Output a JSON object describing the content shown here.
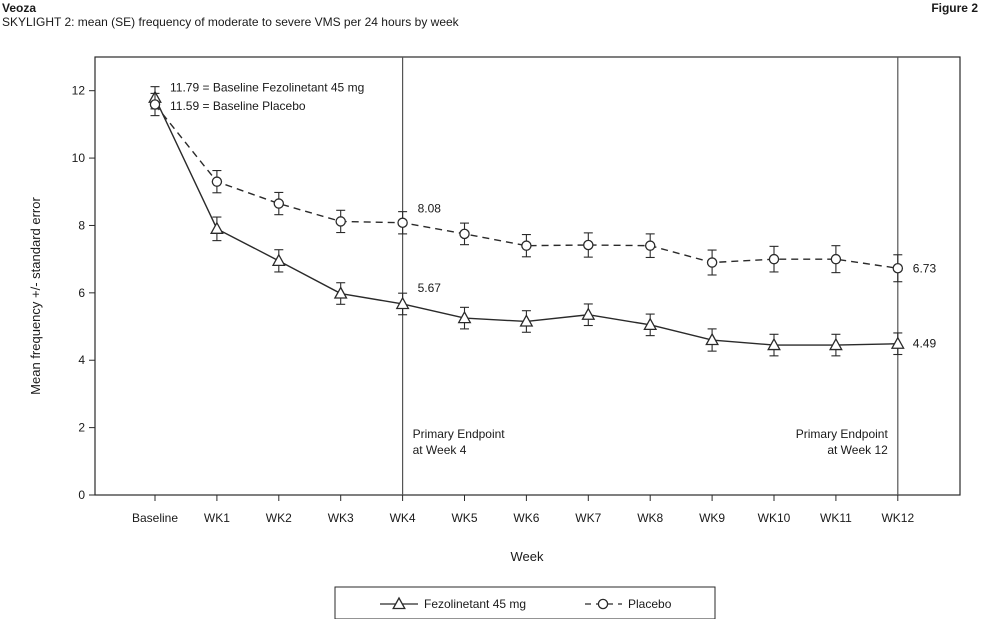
{
  "header": {
    "brand": "Veoza",
    "title": "SKYLIGHT 2: mean (SE) frequency of moderate to severe VMS per 24 hours by week",
    "figure": "Figure 2"
  },
  "chart_data": {
    "type": "line",
    "xlabel": "Week",
    "ylabel": "Mean frequency +/- standard error",
    "ylim": [
      0,
      13
    ],
    "yticks": [
      0,
      2,
      4,
      6,
      8,
      10,
      12
    ],
    "categories": [
      "Baseline",
      "WK1",
      "WK2",
      "WK3",
      "WK4",
      "WK5",
      "WK6",
      "WK7",
      "WK8",
      "WK9",
      "WK10",
      "WK11",
      "WK12"
    ],
    "grid": false,
    "legend_position": "bottom",
    "series": [
      {
        "name": "Fezolinetant 45 mg",
        "line_style": "solid",
        "marker": "triangle",
        "values": [
          11.79,
          7.9,
          6.95,
          5.98,
          5.67,
          5.25,
          5.15,
          5.35,
          5.05,
          4.6,
          4.45,
          4.45,
          4.49
        ],
        "se": [
          0.33,
          0.35,
          0.33,
          0.32,
          0.32,
          0.32,
          0.32,
          0.32,
          0.32,
          0.33,
          0.32,
          0.32,
          0.32
        ]
      },
      {
        "name": "Placebo",
        "line_style": "dashed",
        "marker": "circle",
        "values": [
          11.59,
          9.3,
          8.65,
          8.12,
          8.08,
          7.75,
          7.4,
          7.42,
          7.4,
          6.9,
          7.0,
          7.0,
          6.73
        ],
        "se": [
          0.33,
          0.33,
          0.33,
          0.33,
          0.33,
          0.32,
          0.33,
          0.36,
          0.35,
          0.37,
          0.38,
          0.4,
          0.4
        ]
      }
    ],
    "reference_lines": [
      {
        "x_category": "WK4",
        "label_lines": [
          "Primary Endpoint",
          "at Week 4"
        ],
        "label_align": "left"
      },
      {
        "x_category": "WK12",
        "label_lines": [
          "Primary Endpoint",
          "at Week 12"
        ],
        "label_align": "right"
      }
    ],
    "annotations": [
      {
        "text": "11.79 = Baseline Fezolinetant 45 mg",
        "category": "Baseline",
        "y": 12.1
      },
      {
        "text": "11.59 = Baseline Placebo",
        "category": "Baseline",
        "y": 11.55
      },
      {
        "text": "8.08",
        "category": "WK4",
        "y": 8.5
      },
      {
        "text": "5.67",
        "category": "WK4",
        "y": 6.15
      },
      {
        "text": "6.73",
        "category": "WK12",
        "y": 6.73
      },
      {
        "text": "4.49",
        "category": "WK12",
        "y": 4.49
      }
    ]
  }
}
